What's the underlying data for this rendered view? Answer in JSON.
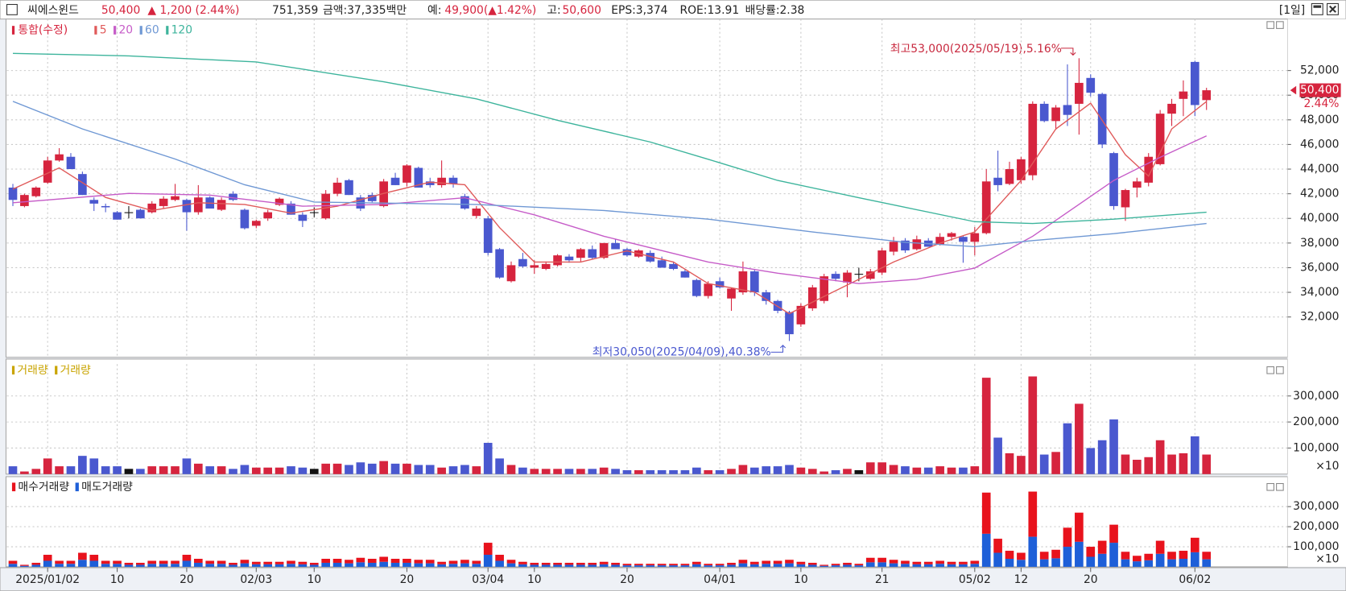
{
  "header": {
    "name": "씨에스윈드",
    "price": "50,400",
    "change": "▲ 1,200 (2.44%)",
    "volume": "751,359",
    "amount": "금액:37,335백만",
    "expected_label": "예:",
    "expected": "49,900(▲1.42%)",
    "high_label": "고:",
    "high": "50,600",
    "eps": "EPS:3,374",
    "roe": "ROE:13.91",
    "dividend": "배당률:2.38",
    "period": "[1일]"
  },
  "chart_data": [
    {
      "type": "candlestick",
      "series_label": "통합(수정)",
      "up_color": "#d6243e",
      "down_color": "#4a58cf",
      "doji_color": "#111111",
      "categories": [
        null,
        null,
        null,
        "2025/01/02",
        null,
        null,
        null,
        null,
        null,
        "10",
        null,
        null,
        null,
        null,
        null,
        "20",
        null,
        null,
        null,
        null,
        null,
        "02/03",
        null,
        null,
        null,
        null,
        "10",
        null,
        null,
        null,
        null,
        null,
        null,
        null,
        "20",
        null,
        null,
        null,
        null,
        null,
        null,
        "03/04",
        null,
        null,
        null,
        "10",
        null,
        null,
        null,
        null,
        null,
        null,
        null,
        "20",
        null,
        null,
        null,
        null,
        null,
        null,
        null,
        "04/01",
        null,
        null,
        null,
        null,
        null,
        null,
        "10",
        null,
        null,
        null,
        null,
        null,
        null,
        "21",
        null,
        null,
        null,
        null,
        null,
        null,
        null,
        "05/02",
        null,
        null,
        null,
        "12",
        null,
        null,
        null,
        null,
        null,
        "20",
        null,
        null,
        null,
        null,
        null,
        null,
        null,
        null,
        "06/02",
        null
      ],
      "open": [
        42500,
        41000,
        41800,
        42900,
        44700,
        45000,
        43600,
        41500,
        41000,
        40500,
        40500,
        40700,
        40500,
        41000,
        41500,
        41500,
        40500,
        41700,
        40700,
        42000,
        40700,
        39400,
        40000,
        41100,
        41200,
        40300,
        40500,
        40000,
        42000,
        43100,
        41700,
        41900,
        41000,
        43300,
        42900,
        44100,
        43000,
        42700,
        43300,
        41800,
        40200,
        40000,
        37500,
        34900,
        36700,
        36000,
        35900,
        36200,
        36900,
        36800,
        37500,
        36800,
        38000,
        37500,
        36900,
        37200,
        36600,
        36300,
        35700,
        35000,
        33700,
        34900,
        33500,
        34000,
        35700,
        34000,
        33300,
        32400,
        31400,
        32700,
        33300,
        35500,
        34800,
        35500,
        35100,
        35600,
        37300,
        38200,
        37500,
        38200,
        37900,
        38500,
        38500,
        38100,
        38800,
        43300,
        42800,
        43100,
        43500,
        49300,
        47900,
        49200,
        49300,
        51400,
        50100,
        45300,
        40900,
        42500,
        42900,
        44400,
        48500,
        49700,
        52700,
        49600
      ],
      "high": [
        42800,
        42000,
        42600,
        45000,
        45700,
        45300,
        43800,
        41700,
        41200,
        40600,
        41000,
        40800,
        41400,
        41800,
        42800,
        41600,
        42700,
        41800,
        41700,
        42200,
        40800,
        39900,
        40700,
        41700,
        41400,
        40500,
        40900,
        42300,
        43300,
        43200,
        41900,
        42100,
        43200,
        43700,
        44400,
        44200,
        43300,
        44700,
        43500,
        42000,
        41000,
        40200,
        37600,
        36500,
        37200,
        36600,
        36500,
        37100,
        37100,
        37600,
        37800,
        38000,
        38300,
        37600,
        37500,
        37400,
        36900,
        36500,
        35900,
        35100,
        34900,
        35200,
        34400,
        36500,
        35800,
        34200,
        33400,
        32500,
        33100,
        34600,
        35500,
        35700,
        35800,
        36000,
        35900,
        37600,
        38500,
        38400,
        38600,
        38400,
        38800,
        38900,
        38600,
        39300,
        44000,
        45500,
        44600,
        45000,
        49500,
        49500,
        49200,
        52500,
        53000,
        51700,
        50200,
        45400,
        42400,
        43300,
        45300,
        48800,
        49700,
        51200,
        52800,
        50600
      ],
      "low": [
        41000,
        40900,
        41700,
        42800,
        44600,
        44000,
        41900,
        40600,
        40500,
        39900,
        40000,
        40000,
        40400,
        40800,
        41400,
        39000,
        40300,
        40800,
        40600,
        41400,
        39100,
        39200,
        39800,
        41000,
        40300,
        39300,
        40100,
        39900,
        41800,
        41900,
        40600,
        41300,
        40900,
        42700,
        42600,
        42500,
        42500,
        42500,
        42500,
        40700,
        40000,
        37000,
        35100,
        34800,
        36000,
        35500,
        35800,
        36100,
        36400,
        36500,
        36700,
        36700,
        37500,
        36900,
        36800,
        36400,
        36000,
        35800,
        35200,
        33600,
        33500,
        34300,
        32500,
        33800,
        33700,
        33000,
        32300,
        30050,
        31200,
        32500,
        33100,
        34900,
        33600,
        34900,
        35000,
        35400,
        37000,
        37200,
        37400,
        37700,
        37800,
        38200,
        36400,
        37000,
        38700,
        42200,
        42700,
        42800,
        43100,
        47800,
        47200,
        47500,
        46800,
        49900,
        45700,
        40700,
        39800,
        41700,
        42600,
        44300,
        47500,
        48300,
        48300,
        48800
      ],
      "close": [
        41500,
        41900,
        42500,
        44700,
        45200,
        44000,
        41900,
        41200,
        40900,
        39900,
        40500,
        40000,
        41200,
        41600,
        41800,
        40500,
        41700,
        40800,
        41500,
        41500,
        39200,
        39800,
        40500,
        41600,
        40300,
        39800,
        40500,
        42000,
        42900,
        41900,
        40800,
        41400,
        43000,
        42700,
        44300,
        42500,
        42700,
        43300,
        42800,
        40800,
        40800,
        37200,
        35200,
        36200,
        36100,
        36200,
        36300,
        37000,
        36600,
        37500,
        36800,
        38000,
        37500,
        37000,
        37400,
        36500,
        36000,
        35900,
        35200,
        33700,
        34700,
        34400,
        34300,
        35700,
        34000,
        33300,
        32500,
        30600,
        32900,
        34400,
        35300,
        35100,
        35600,
        35500,
        35700,
        37400,
        38100,
        37400,
        38300,
        37700,
        38500,
        38800,
        38100,
        38800,
        43000,
        42700,
        44000,
        44800,
        49300,
        47900,
        49000,
        48400,
        51000,
        50200,
        46000,
        41000,
        42300,
        43000,
        45000,
        48500,
        49300,
        50300,
        49200,
        50400
      ],
      "series": [
        {
          "name": "5",
          "color": "#e05a5a",
          "x": [
            0,
            4,
            8,
            12,
            16,
            20,
            24,
            28,
            32,
            36,
            39,
            42,
            45,
            49,
            53,
            57,
            60,
            64,
            67,
            70,
            73,
            76,
            80,
            83,
            87,
            90,
            93,
            96,
            98,
            100,
            103
          ],
          "values": [
            42380,
            44100,
            41700,
            40640,
            41270,
            41130,
            40430,
            40990,
            42030,
            42940,
            42730,
            39250,
            36460,
            36460,
            37360,
            36460,
            34710,
            34020,
            32270,
            33670,
            35060,
            36460,
            37990,
            38900,
            43080,
            47260,
            49350,
            45170,
            43430,
            47260,
            49490
          ]
        },
        {
          "name": "20",
          "color": "#c65cc8",
          "x": [
            0,
            10,
            17,
            25,
            32,
            39,
            45,
            51,
            60,
            66,
            73,
            78,
            83,
            88,
            95,
            99,
            103
          ],
          "values": [
            41270,
            42030,
            41890,
            40990,
            41130,
            41680,
            40290,
            38550,
            36460,
            35550,
            34710,
            35060,
            35970,
            38550,
            43080,
            44960,
            46700
          ]
        },
        {
          "name": "60",
          "color": "#6f98d4",
          "x": [
            0,
            6,
            14,
            20,
            26,
            40,
            51,
            60,
            69,
            77,
            83,
            88,
            95,
            103
          ],
          "values": [
            49500,
            47260,
            44820,
            42730,
            41330,
            41130,
            40640,
            39940,
            38900,
            38060,
            37710,
            38200,
            38760,
            39590
          ]
        },
        {
          "name": "120",
          "color": "#3db49c",
          "x": [
            0,
            10,
            21,
            32,
            40,
            47,
            55,
            60,
            66,
            73,
            83,
            88,
            95,
            103
          ],
          "values": [
            53390,
            53190,
            52700,
            51090,
            49700,
            47960,
            46200,
            44800,
            43080,
            41680,
            39730,
            39590,
            39940,
            40500
          ]
        }
      ],
      "ylim": [
        28725,
        56180
      ],
      "yticks": [
        {
          "value": 32000,
          "label": "32,000"
        },
        {
          "value": 34000,
          "label": "34,000"
        },
        {
          "value": 36000,
          "label": "36,000"
        },
        {
          "value": 38000,
          "label": "38,000"
        },
        {
          "value": 40000,
          "label": "40,000"
        },
        {
          "value": 42000,
          "label": "42,000"
        },
        {
          "value": 44000,
          "label": "44,000"
        },
        {
          "value": 46000,
          "label": "46,000"
        },
        {
          "value": 48000,
          "label": "48,000"
        },
        {
          "value": 50000,
          "label": "50,000"
        },
        {
          "value": 52000,
          "label": "52,000"
        }
      ],
      "grid": true,
      "last_price_label": "50,400",
      "change_label": "2.44%",
      "annotations": [
        "최고53,000(2025/05/19),5.16%",
        "최저30,050(2025/04/09),40.38%"
      ]
    },
    {
      "type": "bar",
      "series": [
        {
          "name": "거래량",
          "color": "#c9a400",
          "values": [
            30000,
            10000,
            20000,
            60000,
            30000,
            30000,
            70000,
            60000,
            30000,
            30000,
            20000,
            20000,
            30000,
            30000,
            30000,
            60000,
            40000,
            30000,
            30000,
            20000,
            35000,
            25000,
            25000,
            25000,
            30000,
            25000,
            20000,
            40000,
            40000,
            35000,
            45000,
            40000,
            50000,
            40000,
            40000,
            35000,
            35000,
            25000,
            30000,
            35000,
            30000,
            120000,
            60000,
            35000,
            25000,
            20000,
            20000,
            20000,
            20000,
            20000,
            20000,
            25000,
            20000,
            15000,
            15000,
            15000,
            15000,
            15000,
            15000,
            25000,
            15000,
            15000,
            20000,
            35000,
            25000,
            30000,
            30000,
            35000,
            25000,
            20000,
            10000,
            15000,
            20000,
            15000,
            45000,
            45000,
            35000,
            30000,
            25000,
            25000,
            30000,
            25000,
            25000,
            30000,
            370000,
            140000,
            80000,
            70000,
            375000,
            75000,
            85000,
            195000,
            270000,
            100000,
            130000,
            210000,
            75000,
            55000,
            65000,
            130000,
            75000,
            80000,
            145000,
            75000
          ]
        },
        {
          "name": "거래량",
          "color": "#c9a400"
        }
      ],
      "ylim": [
        0,
        422000
      ],
      "yticks": [
        {
          "value": 100000,
          "label": "100,000"
        },
        {
          "value": 200000,
          "label": "200,000"
        },
        {
          "value": 300000,
          "label": "300,000"
        }
      ],
      "grid": true,
      "multiplier_label": "×10"
    },
    {
      "type": "stacked_bar",
      "series": [
        {
          "name": "매수거래량",
          "color": "#e8121c",
          "values": [
            15000,
            5000,
            10000,
            30000,
            15000,
            15000,
            35000,
            30000,
            15000,
            15000,
            10000,
            10000,
            15000,
            15000,
            15000,
            30000,
            20000,
            15000,
            15000,
            10000,
            17500,
            12500,
            12500,
            12500,
            15000,
            12500,
            10000,
            20000,
            20000,
            17500,
            22500,
            20000,
            25000,
            20000,
            20000,
            17500,
            17500,
            12500,
            15000,
            17500,
            15000,
            60000,
            30000,
            17500,
            12500,
            10000,
            10000,
            10000,
            10000,
            10000,
            10000,
            12500,
            10000,
            7500,
            7500,
            7500,
            7500,
            7500,
            7500,
            12500,
            7500,
            7500,
            10000,
            17500,
            12500,
            15000,
            15000,
            17500,
            12500,
            10000,
            5000,
            7500,
            10000,
            7500,
            22500,
            22500,
            17500,
            15000,
            12500,
            12500,
            15000,
            12500,
            12500,
            15000,
            205000,
            70000,
            40000,
            35000,
            225000,
            37500,
            42500,
            95000,
            145000,
            50000,
            65000,
            90000,
            37500,
            27500,
            32500,
            65000,
            37500,
            40000,
            72500,
            37500
          ]
        },
        {
          "name": "매도거래량",
          "color": "#1e5fd8",
          "values": [
            15000,
            5000,
            10000,
            30000,
            15000,
            15000,
            35000,
            30000,
            15000,
            15000,
            10000,
            10000,
            15000,
            15000,
            15000,
            30000,
            20000,
            15000,
            15000,
            10000,
            17500,
            12500,
            12500,
            12500,
            15000,
            12500,
            10000,
            20000,
            20000,
            17500,
            22500,
            20000,
            25000,
            20000,
            20000,
            17500,
            17500,
            12500,
            15000,
            17500,
            15000,
            60000,
            30000,
            17500,
            12500,
            10000,
            10000,
            10000,
            10000,
            10000,
            10000,
            12500,
            10000,
            7500,
            7500,
            7500,
            7500,
            7500,
            7500,
            12500,
            7500,
            7500,
            10000,
            17500,
            12500,
            15000,
            15000,
            17500,
            12500,
            10000,
            5000,
            7500,
            10000,
            7500,
            22500,
            22500,
            17500,
            15000,
            12500,
            12500,
            15000,
            12500,
            12500,
            15000,
            165000,
            70000,
            40000,
            35000,
            150000,
            37500,
            42500,
            100000,
            125000,
            50000,
            65000,
            120000,
            37500,
            27500,
            32500,
            65000,
            37500,
            40000,
            72500,
            37500
          ]
        }
      ],
      "ylim": [
        0,
        428000
      ],
      "yticks": [
        {
          "value": 100000,
          "label": "100,000"
        },
        {
          "value": 200000,
          "label": "200,000"
        },
        {
          "value": 300000,
          "label": "300,000"
        }
      ],
      "grid": true,
      "multiplier_label": "×10"
    }
  ]
}
